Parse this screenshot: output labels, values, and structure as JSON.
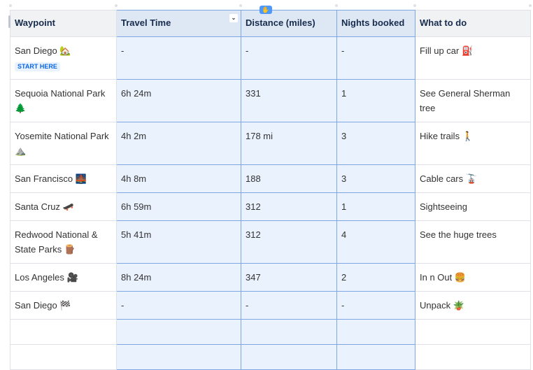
{
  "columns": [
    "Waypoint",
    "Travel Time",
    "Distance (miles)",
    "Nights booked",
    "What to do"
  ],
  "badge": "START HERE",
  "rows": [
    {
      "waypoint": "San Diego 🏡",
      "time": "-",
      "distance": "-",
      "nights": "-",
      "todo": "Fill up car ⛽"
    },
    {
      "waypoint": "Sequoia National Park 🌲",
      "time": "6h 24m",
      "distance": "331",
      "nights": "1",
      "todo": "See General Sherman tree"
    },
    {
      "waypoint": "Yosemite National Park ⛰️",
      "time": "4h 2m",
      "distance": "178 mi",
      "nights": "3",
      "todo": "Hike trails 🚶"
    },
    {
      "waypoint": "San Francisco 🌉",
      "time": "4h 8m",
      "distance": "188",
      "nights": "3",
      "todo": "Cable cars 🚡"
    },
    {
      "waypoint": "Santa Cruz 🛹",
      "time": "6h 59m",
      "distance": "312",
      "nights": "1",
      "todo": "Sightseeing"
    },
    {
      "waypoint": "Redwood National & State Parks 🪵",
      "time": "5h 41m",
      "distance": "312",
      "nights": "4",
      "todo": "See the huge trees"
    },
    {
      "waypoint": "Los Angeles 🎥",
      "time": "8h 24m",
      "distance": "347",
      "nights": "2",
      "todo": "In n Out 🍔"
    },
    {
      "waypoint": "San Diego 🏁",
      "time": "-",
      "distance": "-",
      "nights": "-",
      "todo": "Unpack 🪴"
    },
    {
      "waypoint": "",
      "time": "",
      "distance": "",
      "nights": "",
      "todo": ""
    },
    {
      "waypoint": "",
      "time": "",
      "distance": "",
      "nights": "",
      "todo": ""
    }
  ]
}
